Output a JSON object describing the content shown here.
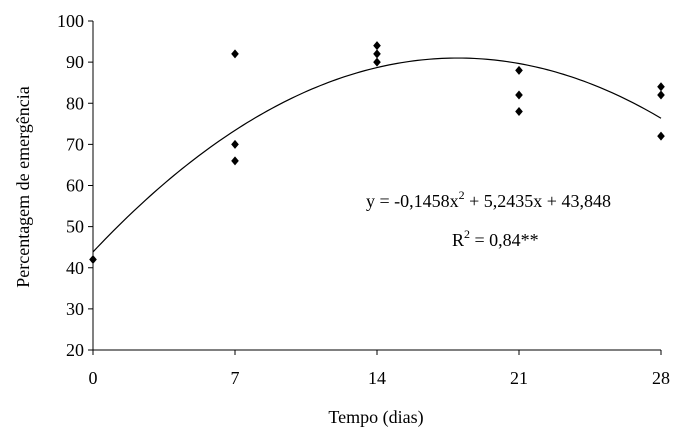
{
  "chart_data": {
    "type": "scatter",
    "title": "",
    "xlabel": "Tempo (dias)",
    "ylabel": "Percentagem de emergência",
    "xlim": [
      0,
      28
    ],
    "ylim": [
      20,
      100
    ],
    "xticks": [
      0,
      7,
      14,
      21,
      28
    ],
    "yticks": [
      20,
      30,
      40,
      50,
      60,
      70,
      80,
      90,
      100
    ],
    "grid": false,
    "legend": "none",
    "marker": "diamond",
    "marker_color": "#000000",
    "line_color": "#000000",
    "points": [
      {
        "x": 0,
        "y": 42
      },
      {
        "x": 7,
        "y": 92
      },
      {
        "x": 7,
        "y": 70
      },
      {
        "x": 7,
        "y": 66
      },
      {
        "x": 14,
        "y": 94
      },
      {
        "x": 14,
        "y": 92
      },
      {
        "x": 14,
        "y": 90
      },
      {
        "x": 21,
        "y": 88
      },
      {
        "x": 21,
        "y": 82
      },
      {
        "x": 21,
        "y": 78
      },
      {
        "x": 28,
        "y": 84
      },
      {
        "x": 28,
        "y": 82
      },
      {
        "x": 28,
        "y": 72
      }
    ],
    "trendline": {
      "type": "quadratic",
      "a": -0.1458,
      "b": 5.2435,
      "c": 43.848
    },
    "annotations": {
      "equation_main": "y = -0,1458x",
      "equation_exp": "2",
      "equation_rest": " + 5,2435x + 43,848",
      "r2_prefix": "R",
      "r2_exp": "2",
      "r2_rest": " = 0,84**"
    }
  }
}
